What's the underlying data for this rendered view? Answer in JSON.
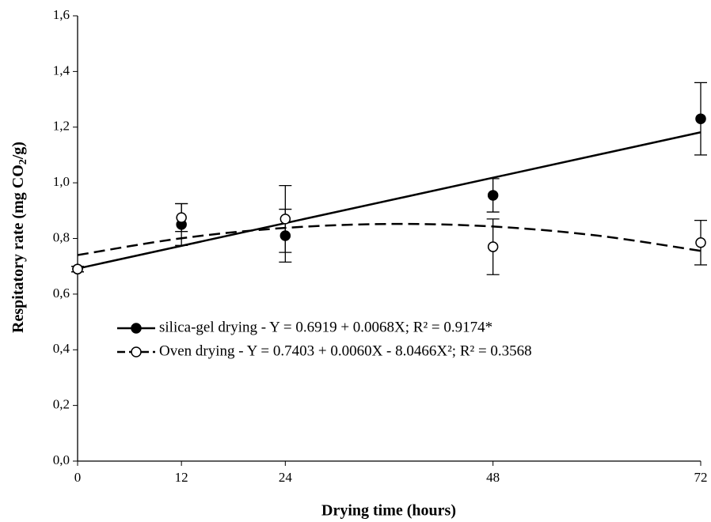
{
  "chart_data": {
    "type": "scatter",
    "xlabel": "Drying time (hours)",
    "ylabel": [
      "Respitatory rate (mg CO",
      "2",
      "/g)"
    ],
    "x": [
      0,
      12,
      24,
      48,
      72
    ],
    "xlim": [
      0,
      72
    ],
    "xticks": [
      0,
      12,
      24,
      48,
      72
    ],
    "ylim": [
      0,
      1.6
    ],
    "yticks": [
      {
        "value": 0,
        "label": "0,0"
      },
      {
        "value": 0.2,
        "label": "0,2"
      },
      {
        "value": 0.4,
        "label": "0,4"
      },
      {
        "value": 0.6,
        "label": "0,6"
      },
      {
        "value": 0.8,
        "label": "0,8"
      },
      {
        "value": 1.0,
        "label": "1,0"
      },
      {
        "value": 1.2,
        "label": "1,2"
      },
      {
        "value": 1.4,
        "label": "1,4"
      },
      {
        "value": 1.6,
        "label": "1,6"
      }
    ],
    "series": [
      {
        "name": "silica-gel drying - Y = 0.6919 + 0.0068X; R² = 0.9174*",
        "color": "#000000",
        "marker": "filled",
        "values": [
          0.69,
          0.85,
          0.81,
          0.955,
          1.23
        ],
        "errors": [
          0.01,
          0.075,
          0.095,
          0.06,
          0.13
        ],
        "fit": {
          "dash": false,
          "x": [
            0,
            72
          ],
          "values": [
            0.6919,
            1.1815
          ]
        }
      },
      {
        "name": "Oven drying - Y = 0.7403 + 0.0060X - 8.0466X²; R² = 0.3568",
        "color": "#000000",
        "marker": "open",
        "values": [
          0.69,
          0.875,
          0.87,
          0.77,
          0.785
        ],
        "errors": [
          0.01,
          0.05,
          0.12,
          0.1,
          0.08
        ],
        "fit": {
          "dash": true,
          "x": [
            0,
            12,
            24,
            36,
            48,
            60,
            72
          ],
          "values": [
            0.7403,
            0.8007,
            0.838,
            0.852,
            0.8429,
            0.8106,
            0.7554
          ]
        }
      }
    ]
  }
}
